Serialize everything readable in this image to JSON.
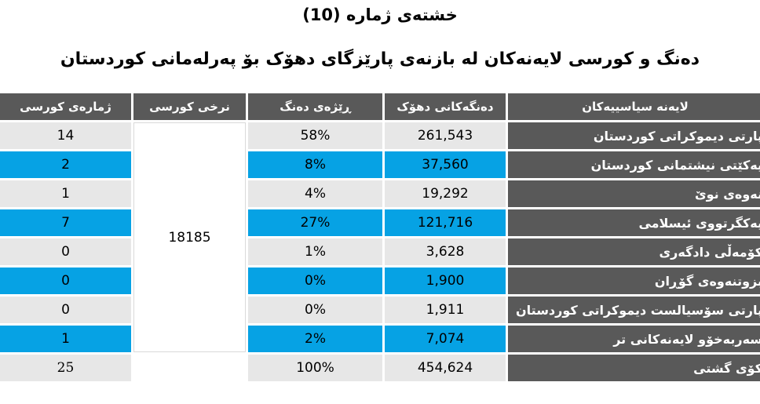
{
  "caption": {
    "title": "خشتەی ژمارە (10)",
    "subtitle": "دەنگ و کورسی لایەنەکان لە بازنەی پارێزگای دهۆک بۆ پەرلەمانی کوردستان"
  },
  "table": {
    "headers": {
      "seats": "ژمارەی کورسی",
      "seat_rate": "نرخی کورسی",
      "vote_share": "ڕێژەی دەنگ",
      "votes": "دەنگەکانی دهۆک",
      "parties": "لایەنە سیاسییەکان"
    },
    "seat_rate_value": "18185",
    "rows": [
      {
        "party": "پارتی دیموکراتی کوردستان",
        "votes": "261,543",
        "share": "58%",
        "seats": "14"
      },
      {
        "party": "یەکێتی نیشتمانی کوردستان",
        "votes": "37,560",
        "share": "8%",
        "seats": "2"
      },
      {
        "party": "نەوەی نوێ",
        "votes": "19,292",
        "share": "4%",
        "seats": "1"
      },
      {
        "party": "یەکگرتووی ئیسلامی",
        "votes": "121,716",
        "share": "27%",
        "seats": "7"
      },
      {
        "party": "کۆمەڵی دادگەری",
        "votes": "3,628",
        "share": "1%",
        "seats": "0"
      },
      {
        "party": "بزوتنەوەی گۆڕان",
        "votes": "1,900",
        "share": "0%",
        "seats": "0"
      },
      {
        "party": "پارتی سۆسیالست دیموکراتی کوردستان",
        "votes": "1,911",
        "share": "0%",
        "seats": "0"
      },
      {
        "party": "سەربەخۆو لایەنەکانی تر",
        "votes": "7,074",
        "share": "2%",
        "seats": "1"
      }
    ],
    "total": {
      "party": "کۆی گشتی",
      "votes": "454,624",
      "share": "100%",
      "seats": "25"
    }
  },
  "colors": {
    "header": "#595959",
    "highlight": "#06a2e4",
    "cell": "#e7e7e7"
  }
}
